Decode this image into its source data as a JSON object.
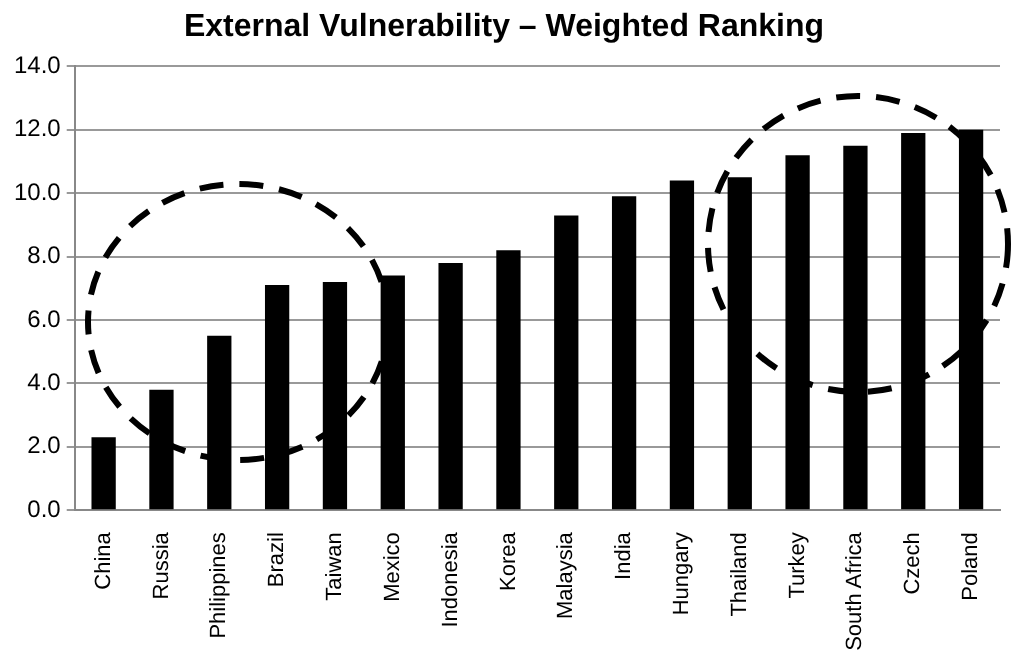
{
  "chart_data": {
    "type": "bar",
    "title": "External Vulnerability – Weighted Ranking",
    "categories": [
      "China",
      "Russia",
      "Philippines",
      "Brazil",
      "Taiwan",
      "Mexico",
      "Indonesia",
      "Korea",
      "Malaysia",
      "India",
      "Hungary",
      "Thailand",
      "Turkey",
      "South Africa",
      "Czech",
      "Poland"
    ],
    "values": [
      2.3,
      3.8,
      5.5,
      7.1,
      7.2,
      7.4,
      7.8,
      8.2,
      9.3,
      9.9,
      10.4,
      10.5,
      11.2,
      11.5,
      11.9,
      12.0
    ],
    "color": "#000000",
    "ylim": [
      0,
      14
    ],
    "yticks": [
      {
        "value": 0,
        "label": "0.0"
      },
      {
        "value": 2,
        "label": "2.0"
      },
      {
        "value": 4,
        "label": "4.0"
      },
      {
        "value": 6,
        "label": "6.0"
      },
      {
        "value": 8,
        "label": "8.0"
      },
      {
        "value": 10,
        "label": "10.0"
      },
      {
        "value": 12,
        "label": "12.0"
      },
      {
        "value": 14,
        "label": "14.0"
      }
    ],
    "grid": "y"
  }
}
